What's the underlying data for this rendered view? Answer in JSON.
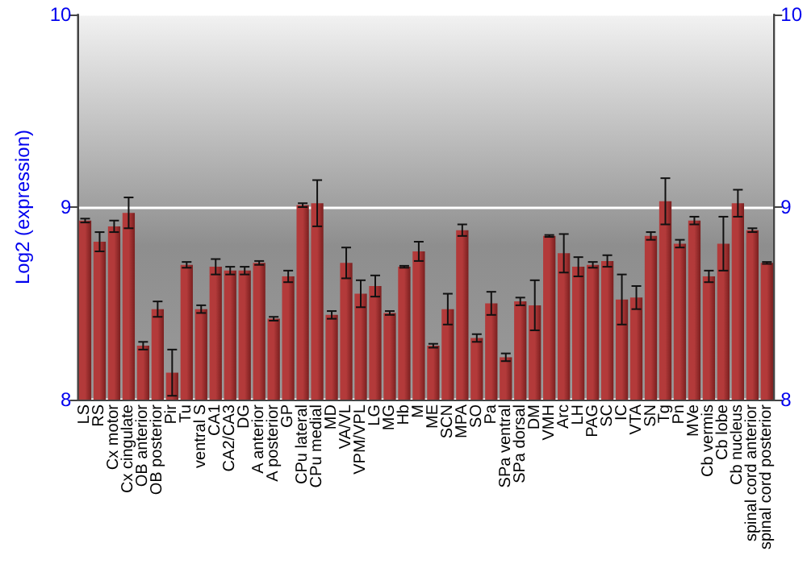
{
  "chart_data": {
    "type": "bar",
    "ylabel": "Log2 (expression)",
    "categories": [
      "LS",
      "RS",
      "Cx motor",
      "Cx cingulate",
      "OB anterior",
      "OB posterior",
      "Pir",
      "Tu",
      "ventral S",
      "CA1",
      "CA2/CA3",
      "DG",
      "A anterior",
      "A posterior",
      "GP",
      "CPu lateral",
      "CPu medial",
      "MD",
      "VA/VL",
      "VPM/VPL",
      "LG",
      "MG",
      "Hb",
      "M",
      "ME",
      "SCN",
      "MPA",
      "SO",
      "Pa",
      "SPa ventral",
      "SPa dorsal",
      "DM",
      "VMH",
      "Arc",
      "LH",
      "PAG",
      "SC",
      "IC",
      "VTA",
      "SN",
      "Tg",
      "Pn",
      "MVe",
      "Cb vermis",
      "Cb lobe",
      "Cb nucleus",
      "spinal cord anterior",
      "spinal cord posterior"
    ],
    "values": [
      8.93,
      8.82,
      8.9,
      8.97,
      8.28,
      8.47,
      8.14,
      8.7,
      8.47,
      8.69,
      8.67,
      8.67,
      8.71,
      8.42,
      8.64,
      9.01,
      9.02,
      8.44,
      8.71,
      8.55,
      8.59,
      8.45,
      8.69,
      8.77,
      8.28,
      8.47,
      8.88,
      8.32,
      8.5,
      8.22,
      8.51,
      8.49,
      8.85,
      8.76,
      8.69,
      8.7,
      8.72,
      8.52,
      8.53,
      8.85,
      9.03,
      8.81,
      8.93,
      8.64,
      8.81,
      9.02,
      8.88,
      8.71
    ],
    "errors": [
      0.01,
      0.05,
      0.03,
      0.08,
      0.02,
      0.04,
      0.12,
      0.015,
      0.02,
      0.04,
      0.02,
      0.02,
      0.01,
      0.01,
      0.03,
      0.01,
      0.12,
      0.02,
      0.08,
      0.07,
      0.055,
      0.01,
      0.005,
      0.05,
      0.01,
      0.08,
      0.03,
      0.02,
      0.06,
      0.02,
      0.02,
      0.13,
      0.005,
      0.1,
      0.05,
      0.015,
      0.03,
      0.13,
      0.06,
      0.02,
      0.12,
      0.02,
      0.02,
      0.03,
      0.14,
      0.07,
      0.01,
      0.005
    ],
    "color": "#b33a3a",
    "ylim": [
      8,
      10
    ],
    "yticks": [
      8,
      9,
      10
    ],
    "y2lim": [
      8,
      10
    ],
    "y2ticks": [
      8,
      9,
      10
    ],
    "grid": "y"
  }
}
